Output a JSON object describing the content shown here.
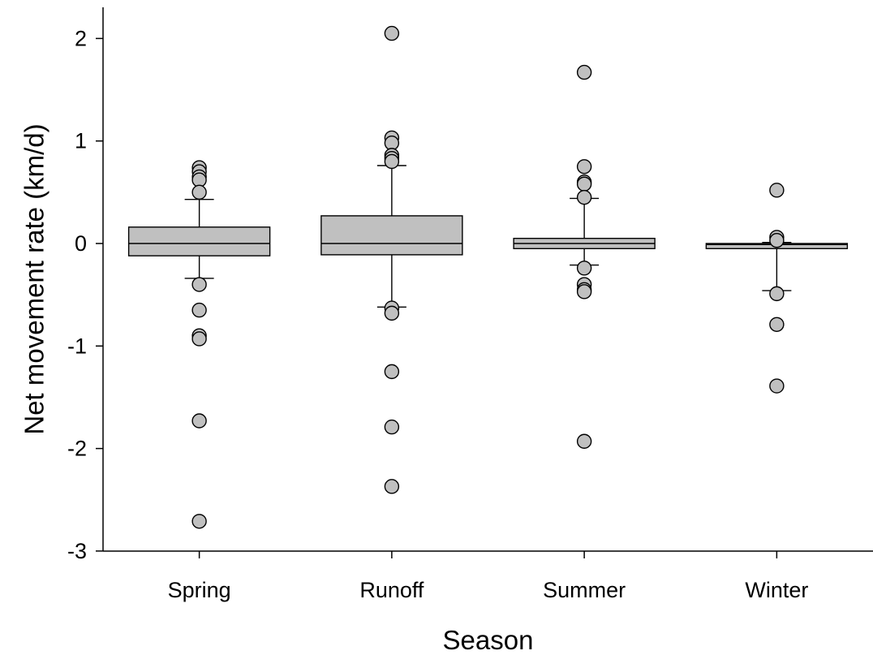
{
  "chart_data": {
    "type": "box",
    "title": "",
    "xlabel": "Season",
    "ylabel": "Net movement rate (km/d)",
    "ylim": [
      -3,
      2.3
    ],
    "yticks": [
      -3,
      -2,
      -1,
      0,
      1,
      2
    ],
    "grid": false,
    "colors": {
      "box_fill": "#c0c0c0",
      "outlier_fill": "#c0c0c0",
      "stroke": "#000000"
    },
    "categories": [
      "Spring",
      "Runoff",
      "Summer",
      "Winter"
    ],
    "boxes": [
      {
        "category": "Spring",
        "whisker_low": -0.34,
        "q1": -0.12,
        "median": 0.0,
        "q3": 0.16,
        "whisker_high": 0.43,
        "outliers": [
          0.74,
          0.7,
          0.65,
          0.62,
          0.5,
          -0.4,
          -0.65,
          -0.9,
          -0.93,
          -1.73,
          -2.71
        ]
      },
      {
        "category": "Runoff",
        "whisker_low": -0.62,
        "q1": -0.11,
        "median": 0.0,
        "q3": 0.27,
        "whisker_high": 0.76,
        "outliers": [
          2.05,
          1.03,
          0.98,
          0.86,
          0.83,
          0.8,
          -0.63,
          -0.68,
          -1.25,
          -1.79,
          -2.37
        ]
      },
      {
        "category": "Summer",
        "whisker_low": -0.21,
        "q1": -0.05,
        "median": 0.0,
        "q3": 0.05,
        "whisker_high": 0.44,
        "outliers": [
          1.67,
          0.75,
          0.6,
          0.58,
          0.45,
          -0.24,
          -0.4,
          -0.45,
          -0.47,
          -1.93
        ]
      },
      {
        "category": "Winter",
        "whisker_low": -0.46,
        "q1": -0.05,
        "median": -0.01,
        "q3": 0.0,
        "whisker_high": 0.01,
        "outliers": [
          0.52,
          0.06,
          0.03,
          -0.49,
          -0.79,
          -1.39
        ]
      }
    ]
  }
}
